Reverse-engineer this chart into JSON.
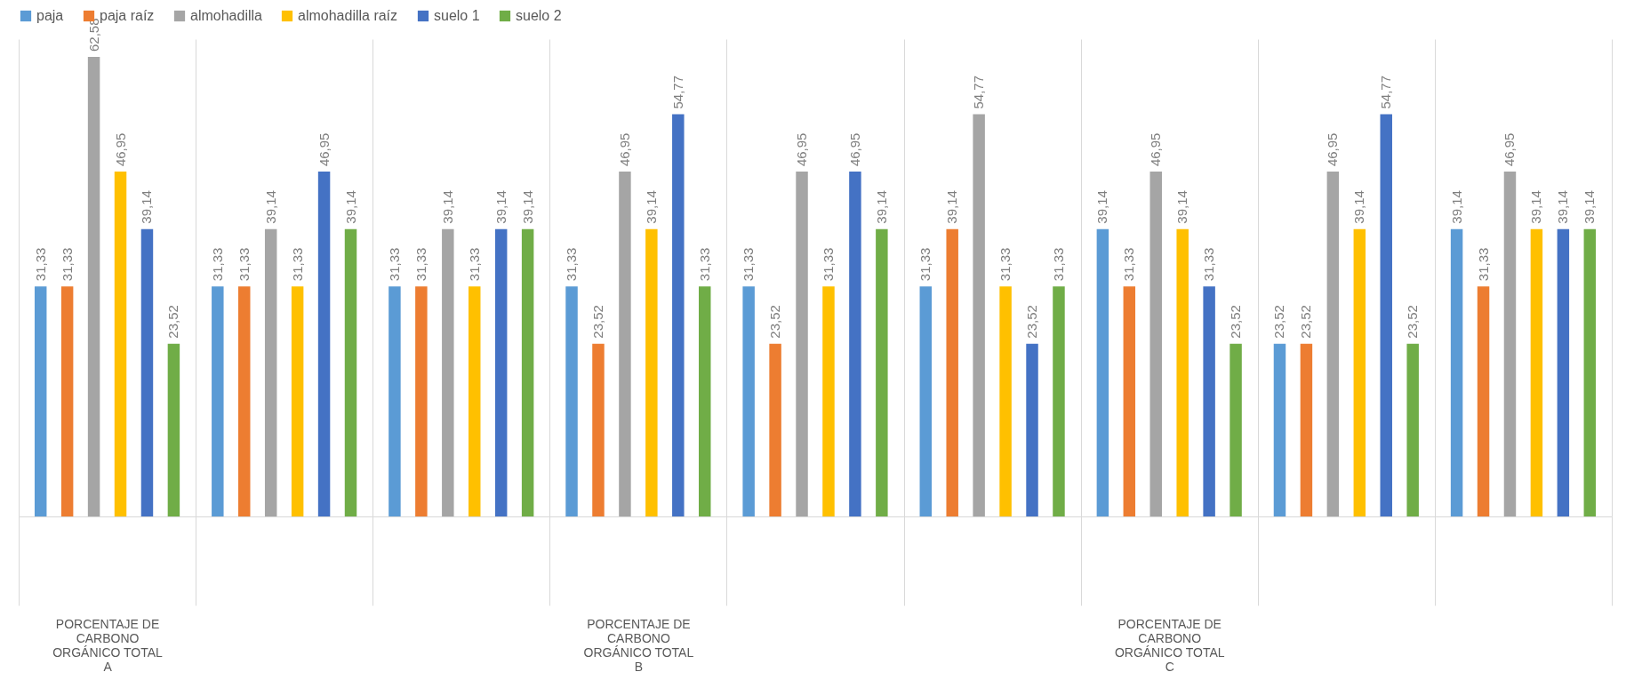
{
  "chart_data": {
    "type": "bar",
    "categories": [
      "PORCENTAJE DE CARBONO ORGÁNICO TOTAL A",
      null,
      null,
      "PORCENTAJE DE CARBONO ORGÁNICO TOTAL B",
      null,
      null,
      "PORCENTAJE DE CARBONO ORGÁNICO TOTAL C",
      null,
      null
    ],
    "series": [
      {
        "name": "paja",
        "color": "#5b9bd5",
        "values": [
          31.33,
          31.33,
          31.33,
          31.33,
          31.33,
          31.33,
          39.14,
          23.52,
          39.14
        ],
        "value_labels": [
          "31,33",
          "31,33",
          "31,33",
          "31,33",
          "31,33",
          "31,33",
          "39,14",
          "23,52",
          "39,14"
        ]
      },
      {
        "name": "paja raíz",
        "color": "#ed7d31",
        "values": [
          31.33,
          31.33,
          31.33,
          23.52,
          23.52,
          39.14,
          31.33,
          23.52,
          31.33
        ],
        "value_labels": [
          "31,33",
          "31,33",
          "31,33",
          "23,52",
          "23,52",
          "39,14",
          "31,33",
          "23,52",
          "31,33"
        ]
      },
      {
        "name": "almohadilla",
        "color": "#a5a5a5",
        "values": [
          62.58,
          39.14,
          39.14,
          46.95,
          46.95,
          54.77,
          46.95,
          46.95,
          46.95
        ],
        "value_labels": [
          "62,58",
          "39,14",
          "39,14",
          "46,95",
          "46,95",
          "54,77",
          "46,95",
          "46,95",
          "46,95"
        ]
      },
      {
        "name": "almohadilla raíz",
        "color": "#ffc000",
        "values": [
          46.95,
          31.33,
          31.33,
          39.14,
          31.33,
          31.33,
          39.14,
          39.14,
          39.14
        ],
        "value_labels": [
          "46,95",
          "31,33",
          "31,33",
          "39,14",
          "31,33",
          "31,33",
          "39,14",
          "39,14",
          "39,14"
        ]
      },
      {
        "name": "suelo 1",
        "color": "#4472c4",
        "values": [
          39.14,
          46.95,
          39.14,
          54.77,
          46.95,
          23.52,
          31.33,
          54.77,
          39.14
        ],
        "value_labels": [
          "39,14",
          "46,95",
          "39,14",
          "54,77",
          "46,95",
          "23,52",
          "31,33",
          "54,77",
          "39,14"
        ]
      },
      {
        "name": "suelo 2",
        "color": "#70ad47",
        "values": [
          23.52,
          39.14,
          39.14,
          31.33,
          39.14,
          31.33,
          23.52,
          23.52,
          39.14
        ],
        "value_labels": [
          "23,52",
          "39,14",
          "39,14",
          "31,33",
          "39,14",
          "31,33",
          "23,52",
          "23,52",
          "39,14"
        ]
      }
    ],
    "grid": "x",
    "legend": "top",
    "tick_labels": "x"
  }
}
